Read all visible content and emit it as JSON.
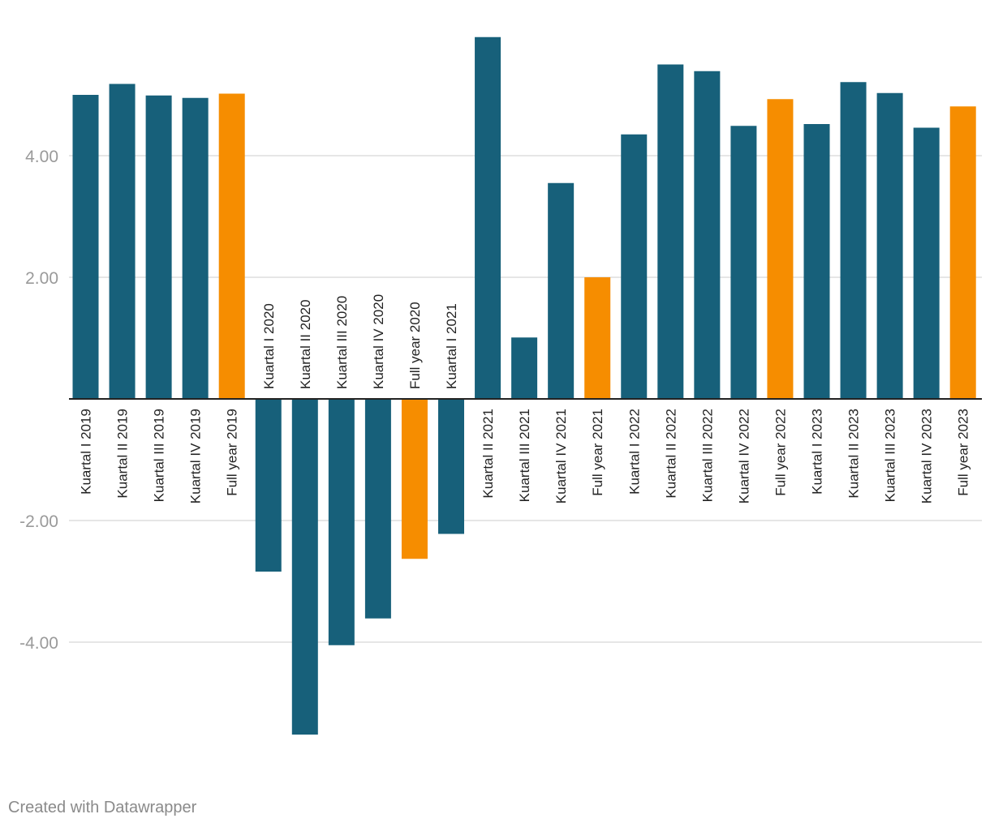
{
  "chart_data": {
    "type": "bar",
    "title": "",
    "xlabel": "",
    "ylabel": "",
    "ylim": [
      -6.0,
      6.0
    ],
    "yticks": [
      "4.00",
      "2.00",
      "-2.00",
      "-4.00"
    ],
    "ytick_values": [
      4,
      2,
      -2,
      -4
    ],
    "grid": true,
    "categories": [
      "Kuartal I 2019",
      "Kuartal II 2019",
      "Kuartal III 2019",
      "Kuartal IV 2019",
      "Full year 2019",
      "Kuartal I 2020",
      "Kuartal II 2020",
      "Kuartal III 2020",
      "Kuartal IV 2020",
      "Full year 2020",
      "Kuartal I 2021",
      "Kuartal II 2021",
      "Kuartal III 2021",
      "Kuartal IV 2021",
      "Full year 2021",
      "Kuartal I 2022",
      "Kuartal II 2022",
      "Kuartal III 2022",
      "Kuartal IV 2022",
      "Full year 2022",
      "Kuartal I 2023",
      "Kuartal II 2023",
      "Kuartal III 2023",
      "Kuartal IV 2023",
      "Full year 2023"
    ],
    "values": [
      5.0,
      5.18,
      4.99,
      4.95,
      5.02,
      -2.84,
      -5.52,
      -4.05,
      -3.61,
      -2.63,
      -2.22,
      5.95,
      1.01,
      3.55,
      2.0,
      4.35,
      5.5,
      5.39,
      4.49,
      4.93,
      4.52,
      5.21,
      5.03,
      4.46,
      4.81
    ],
    "colors": {
      "quarter": "#17607a",
      "full_year": "#f68d00",
      "grid": "#dddddd",
      "baseline": "#222222"
    }
  },
  "footer": {
    "credit": "Created with Datawrapper"
  }
}
